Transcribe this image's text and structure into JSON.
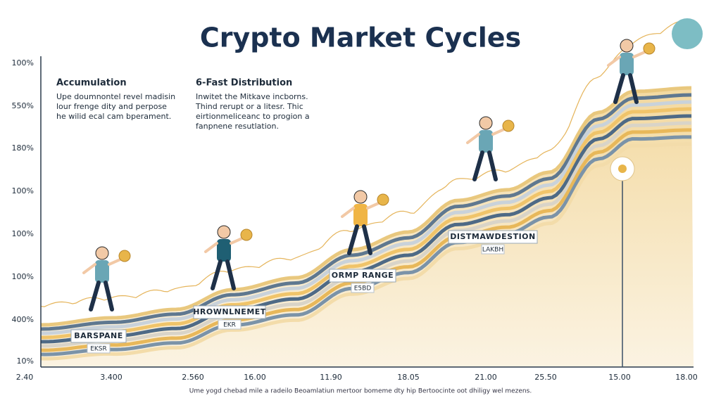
{
  "title": "Crypto Market Cycles",
  "y_axis_labels": [
    "100%",
    "550%",
    "180%",
    "100%",
    "100%",
    "100%",
    "400%",
    "10%"
  ],
  "x_axis_labels": [
    "2.40",
    "3.400",
    "2.560",
    "16.00",
    "11.90",
    "18.05",
    "21.00",
    "25.50",
    "15.00",
    "18.00"
  ],
  "panels": [
    {
      "heading": "Accumulation",
      "lines": [
        "Upe doumnontel revel madisin",
        "lour frenge dity and perpose",
        "he wilid ecal cam bperament."
      ]
    },
    {
      "heading": "6-Fast Distribution",
      "lines": [
        "Inwitet the Mitkave incborns.",
        "Thind rerupt or a litesr. Thic",
        "eirtionmeliceanc to progion a",
        "fanpnene resutlation."
      ]
    }
  ],
  "phase_labels": [
    {
      "name": "BARSPANE",
      "sub": "EKSR"
    },
    {
      "name": "HROWNLNEMET",
      "sub": "EKR"
    },
    {
      "name": "ORMP RANGE",
      "sub": "E5BD"
    },
    {
      "name": "DISTMAWDESTION",
      "sub": "LAKBH"
    }
  ],
  "footer": "Ume yogd chebad mile a radeilo Beoamlatiun mertoor bomeme dty hip Bertoocinte oot dhiligy wel mezens."
}
